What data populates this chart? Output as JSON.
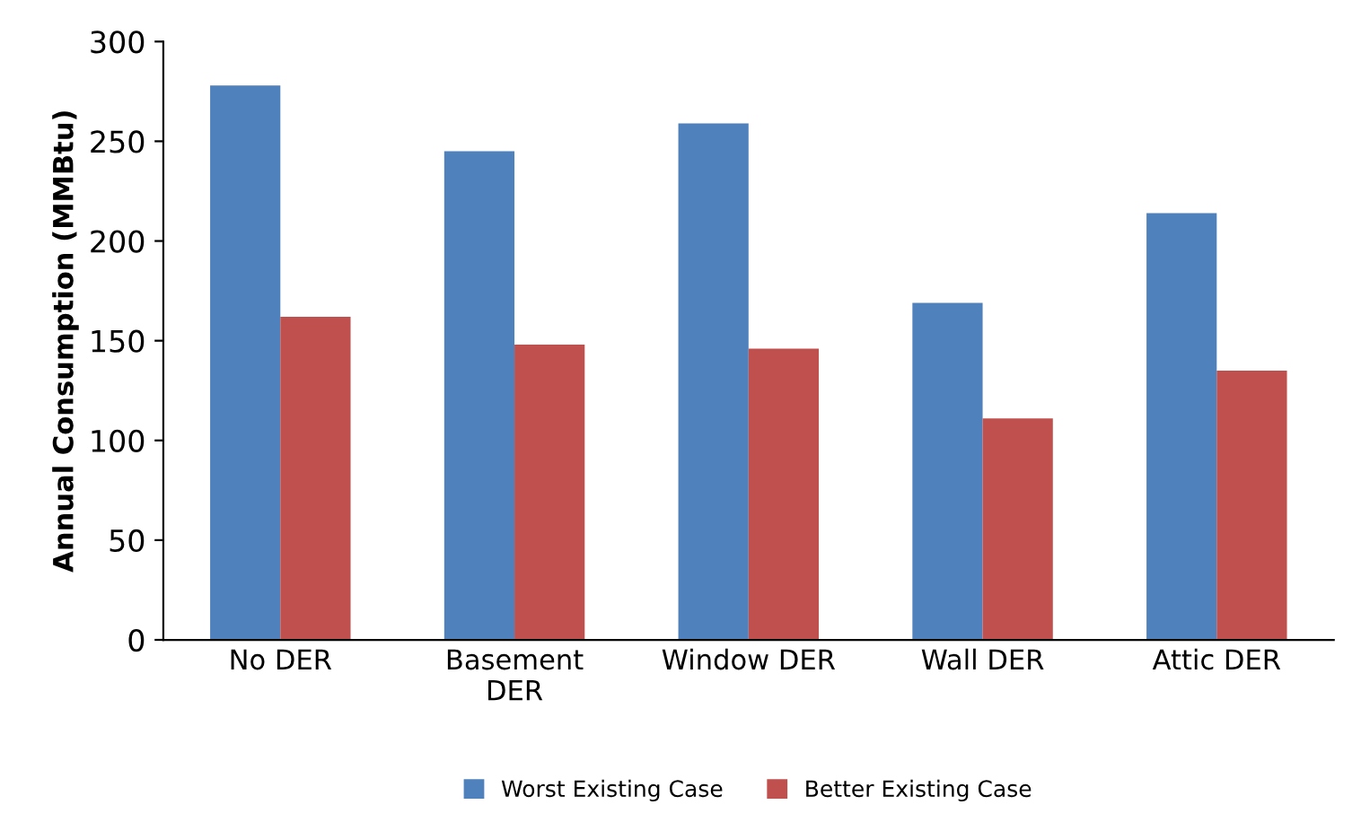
{
  "chart_data": {
    "type": "bar",
    "ylabel": "Annual Consumption (MMBtu)",
    "categories": [
      "No DER",
      "Basement\nDER",
      "Window DER",
      "Wall DER",
      "Attic DER"
    ],
    "series": [
      {
        "name": "Worst Existing Case",
        "color": "#4f81bd",
        "values": [
          278,
          245,
          259,
          169,
          214
        ]
      },
      {
        "name": "Better Existing Case",
        "color": "#c0504d",
        "values": [
          162,
          148,
          146,
          111,
          135
        ]
      }
    ],
    "ylim": [
      0,
      300
    ],
    "yticks": [
      0,
      50,
      100,
      150,
      200,
      250,
      300
    ],
    "grid": false,
    "legend": "bottom"
  }
}
